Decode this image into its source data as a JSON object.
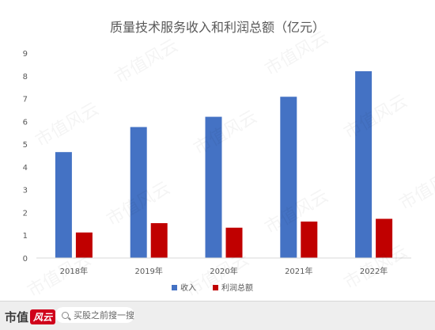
{
  "chart_data": {
    "type": "bar",
    "title": "质量技术服务收入和利润总额（亿元）",
    "categories": [
      "2018年",
      "2019年",
      "2020年",
      "2021年",
      "2022年"
    ],
    "series": [
      {
        "name": "收入",
        "color": "#4472c4",
        "values": [
          4.65,
          5.75,
          6.2,
          7.08,
          8.2
        ]
      },
      {
        "name": "利润总额",
        "color": "#c00000",
        "values": [
          1.12,
          1.53,
          1.33,
          1.6,
          1.72
        ]
      }
    ],
    "ylim": [
      0,
      9
    ],
    "yticks": [
      0,
      1,
      2,
      3,
      4,
      5,
      6,
      7,
      8,
      9
    ],
    "grid": false,
    "legend_position": "bottom"
  },
  "footer": {
    "brand_text": "市值",
    "brand_badge": "风云",
    "search_placeholder": "买股之前搜一搜"
  },
  "watermark_text": "市值风云"
}
